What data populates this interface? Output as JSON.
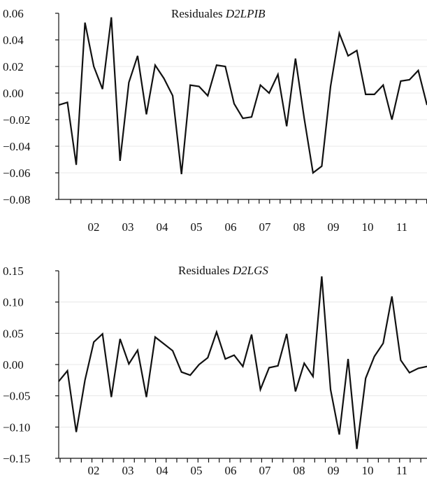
{
  "chart_data": [
    {
      "type": "line",
      "title": "Residuales ",
      "title_italic": "D2LPIB",
      "xlabel": "",
      "ylabel": "",
      "ylim": [
        -0.08,
        0.06
      ],
      "yticks": [
        "0.06",
        "0.04",
        "0.02",
        "0.00",
        "−0.02",
        "−0.04",
        "−0.06",
        "−0.08"
      ],
      "ytick_values": [
        0.06,
        0.04,
        0.02,
        0.0,
        -0.02,
        -0.04,
        -0.06,
        -0.08
      ],
      "xticks": [
        "02",
        "03",
        "04",
        "05",
        "06",
        "07",
        "08",
        "09",
        "10",
        "11"
      ],
      "grid": "faint horizontal",
      "series": [
        {
          "values": [
            -0.009,
            -0.007,
            -0.054,
            0.053,
            0.02,
            0.003,
            0.057,
            -0.051,
            0.008,
            0.028,
            -0.016,
            0.021,
            0.011,
            -0.002,
            -0.061,
            0.006,
            0.005,
            -0.002,
            0.021,
            0.02,
            -0.008,
            -0.019,
            -0.018,
            0.006,
            0.0,
            0.014,
            -0.025,
            0.026,
            -0.019,
            -0.06,
            -0.055,
            0.005,
            0.045,
            0.028,
            0.032,
            -0.001,
            -0.001,
            0.006,
            -0.02,
            0.009,
            0.01,
            0.017,
            -0.009
          ]
        }
      ]
    },
    {
      "type": "line",
      "title": "Residuales ",
      "title_italic": "D2LGS",
      "xlabel": "",
      "ylabel": "",
      "ylim": [
        -0.15,
        0.15
      ],
      "yticks": [
        "0.15",
        "0.10",
        "0.05",
        "0.00",
        "−0.05",
        "−0.10",
        "−0.15"
      ],
      "ytick_values": [
        0.15,
        0.1,
        0.05,
        0.0,
        -0.05,
        -0.1,
        -0.15
      ],
      "xticks": [
        "02",
        "03",
        "04",
        "05",
        "06",
        "07",
        "08",
        "09",
        "10",
        "11"
      ],
      "grid": "faint horizontal",
      "series": [
        {
          "values": [
            -0.027,
            -0.01,
            -0.108,
            -0.025,
            0.036,
            0.049,
            -0.052,
            0.041,
            0.001,
            0.023,
            -0.052,
            0.044,
            0.033,
            0.022,
            -0.012,
            -0.017,
            0.0,
            0.011,
            0.052,
            0.009,
            0.015,
            -0.003,
            0.048,
            -0.04,
            -0.005,
            -0.002,
            0.049,
            -0.043,
            0.002,
            -0.019,
            0.141,
            -0.04,
            -0.112,
            0.009,
            -0.135,
            -0.022,
            0.013,
            0.034,
            0.109,
            0.007,
            -0.013,
            -0.006,
            -0.003
          ]
        }
      ]
    }
  ]
}
